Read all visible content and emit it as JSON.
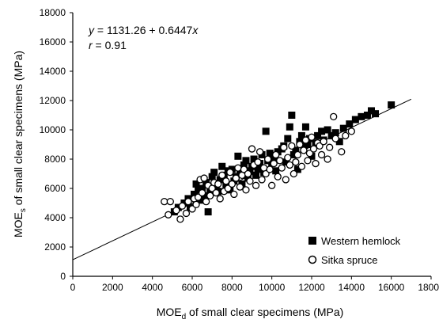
{
  "chart_data": {
    "type": "scatter",
    "xlabel_main": "MOE",
    "xlabel_sub": "d",
    "xlabel_rest": " of small clear specimens (MPa)",
    "ylabel_main": "MOE",
    "ylabel_sub": "s",
    "ylabel_rest": " of small clear specimens (MPa)",
    "xlim": [
      0,
      18000
    ],
    "ylim": [
      0,
      18000
    ],
    "xticks": [
      "0",
      "2000",
      "4000",
      "6000",
      "8000",
      "10000",
      "12000",
      "14000",
      "16000",
      "18000"
    ],
    "yticks": [
      "0",
      "2000",
      "4000",
      "6000",
      "8000",
      "10000",
      "12000",
      "14000",
      "16000",
      "18000"
    ],
    "annotations": {
      "equation_y": "y",
      "equation_rest": " = 1131.26 + 0.6447",
      "equation_x": "x",
      "r_label": "r",
      "r_rest": " = 0.91"
    },
    "fit_line": {
      "intercept": 1131.26,
      "slope": 0.6447,
      "x_range": [
        0,
        17000
      ]
    },
    "legend_position": "bottom-right",
    "series": [
      {
        "name": "Western hemlock",
        "marker": "filled-square",
        "color": "#000000",
        "points": [
          [
            5100,
            4400
          ],
          [
            5300,
            4700
          ],
          [
            5600,
            5000
          ],
          [
            5800,
            5300
          ],
          [
            5900,
            4700
          ],
          [
            6100,
            5600
          ],
          [
            6200,
            6300
          ],
          [
            6300,
            5900
          ],
          [
            6400,
            5200
          ],
          [
            6500,
            6000
          ],
          [
            6600,
            5500
          ],
          [
            6700,
            6400
          ],
          [
            6800,
            4400
          ],
          [
            6900,
            5900
          ],
          [
            7000,
            6800
          ],
          [
            7100,
            7100
          ],
          [
            7200,
            6100
          ],
          [
            7300,
            5800
          ],
          [
            7400,
            6600
          ],
          [
            7500,
            7500
          ],
          [
            7600,
            6900
          ],
          [
            7700,
            6200
          ],
          [
            7800,
            7200
          ],
          [
            7900,
            5900
          ],
          [
            8000,
            7300
          ],
          [
            8100,
            6500
          ],
          [
            8200,
            6800
          ],
          [
            8300,
            8200
          ],
          [
            8400,
            7000
          ],
          [
            8500,
            6300
          ],
          [
            8600,
            7600
          ],
          [
            8700,
            7900
          ],
          [
            8800,
            6700
          ],
          [
            8900,
            7200
          ],
          [
            9000,
            7500
          ],
          [
            9100,
            8000
          ],
          [
            9200,
            6900
          ],
          [
            9300,
            7300
          ],
          [
            9400,
            7700
          ],
          [
            9500,
            8300
          ],
          [
            9600,
            7100
          ],
          [
            9700,
            9900
          ],
          [
            9800,
            7900
          ],
          [
            9900,
            8400
          ],
          [
            10000,
            7700
          ],
          [
            10100,
            8100
          ],
          [
            10200,
            7200
          ],
          [
            10300,
            8500
          ],
          [
            10500,
            8700
          ],
          [
            10600,
            8900
          ],
          [
            10700,
            7800
          ],
          [
            10800,
            9400
          ],
          [
            10900,
            10200
          ],
          [
            11000,
            11000
          ],
          [
            11100,
            8300
          ],
          [
            11200,
            8600
          ],
          [
            11300,
            7300
          ],
          [
            11400,
            9200
          ],
          [
            11500,
            9600
          ],
          [
            11600,
            8900
          ],
          [
            11700,
            10200
          ],
          [
            11800,
            9000
          ],
          [
            11900,
            9400
          ],
          [
            12000,
            8200
          ],
          [
            12200,
            9100
          ],
          [
            12300,
            9600
          ],
          [
            12500,
            9900
          ],
          [
            12600,
            9300
          ],
          [
            12800,
            10000
          ],
          [
            13000,
            9600
          ],
          [
            13200,
            9800
          ],
          [
            13400,
            9200
          ],
          [
            13600,
            10100
          ],
          [
            13900,
            10400
          ],
          [
            14200,
            10700
          ],
          [
            14500,
            10900
          ],
          [
            14800,
            11000
          ],
          [
            15000,
            11300
          ],
          [
            15200,
            11100
          ],
          [
            16000,
            11700
          ]
        ]
      },
      {
        "name": "Sitka spruce",
        "marker": "open-circle",
        "color": "#000000",
        "points": [
          [
            4600,
            5100
          ],
          [
            4900,
            5100
          ],
          [
            4800,
            4200
          ],
          [
            5200,
            4500
          ],
          [
            5400,
            3900
          ],
          [
            5500,
            4800
          ],
          [
            5700,
            4300
          ],
          [
            5800,
            5100
          ],
          [
            6000,
            4600
          ],
          [
            6100,
            5300
          ],
          [
            6200,
            4900
          ],
          [
            6300,
            5400
          ],
          [
            6400,
            6600
          ],
          [
            6500,
            5700
          ],
          [
            6600,
            6700
          ],
          [
            6700,
            5100
          ],
          [
            6800,
            6200
          ],
          [
            6900,
            5500
          ],
          [
            7000,
            6000
          ],
          [
            7100,
            6400
          ],
          [
            7200,
            5700
          ],
          [
            7300,
            6300
          ],
          [
            7400,
            5300
          ],
          [
            7500,
            6900
          ],
          [
            7600,
            5800
          ],
          [
            7700,
            6500
          ],
          [
            7800,
            6000
          ],
          [
            7900,
            7100
          ],
          [
            8000,
            6300
          ],
          [
            8100,
            5600
          ],
          [
            8200,
            6700
          ],
          [
            8300,
            7400
          ],
          [
            8400,
            6100
          ],
          [
            8500,
            6900
          ],
          [
            8600,
            7300
          ],
          [
            8700,
            5900
          ],
          [
            8800,
            7000
          ],
          [
            8900,
            6500
          ],
          [
            9000,
            8700
          ],
          [
            9100,
            7600
          ],
          [
            9200,
            6200
          ],
          [
            9300,
            7800
          ],
          [
            9400,
            8500
          ],
          [
            9500,
            6600
          ],
          [
            9600,
            7400
          ],
          [
            9700,
            7000
          ],
          [
            9800,
            8000
          ],
          [
            9900,
            7300
          ],
          [
            10000,
            6200
          ],
          [
            10100,
            7700
          ],
          [
            10200,
            8300
          ],
          [
            10300,
            6800
          ],
          [
            10400,
            7900
          ],
          [
            10500,
            7400
          ],
          [
            10600,
            8800
          ],
          [
            10700,
            6600
          ],
          [
            10800,
            8100
          ],
          [
            10900,
            7600
          ],
          [
            11000,
            8900
          ],
          [
            11100,
            7000
          ],
          [
            11200,
            7800
          ],
          [
            11300,
            8300
          ],
          [
            11400,
            9000
          ],
          [
            11500,
            7500
          ],
          [
            11600,
            8600
          ],
          [
            11700,
            9300
          ],
          [
            11800,
            7900
          ],
          [
            11900,
            8400
          ],
          [
            12000,
            9500
          ],
          [
            12100,
            8700
          ],
          [
            12200,
            7700
          ],
          [
            12300,
            9100
          ],
          [
            12400,
            8900
          ],
          [
            12500,
            8300
          ],
          [
            12600,
            9200
          ],
          [
            12800,
            8000
          ],
          [
            12900,
            8800
          ],
          [
            13100,
            10900
          ],
          [
            13200,
            9400
          ],
          [
            13500,
            8500
          ],
          [
            13700,
            9600
          ],
          [
            14000,
            9900
          ]
        ]
      }
    ]
  }
}
